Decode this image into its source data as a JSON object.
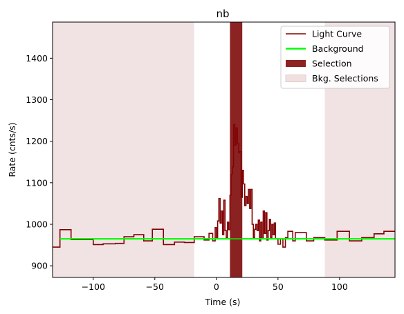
{
  "chart_data": {
    "type": "line",
    "title": "nb",
    "xlabel": "Time (s)",
    "ylabel": "Rate (cnts/s)",
    "xlim": [
      -133,
      145
    ],
    "ylim": [
      872,
      1487
    ],
    "xticks": [
      -100,
      -50,
      0,
      50,
      100
    ],
    "yticks": [
      900,
      1000,
      1100,
      1200,
      1300,
      1400
    ],
    "legend_position": "top-right",
    "colors": {
      "light_curve": "#800000",
      "background": "#00ff00",
      "selection": "#8b2323",
      "bkg_selection": "#f0e0e0"
    },
    "series": [
      {
        "name": "Light Curve",
        "style": "step",
        "points": [
          [
            -133,
            945
          ],
          [
            -127,
            987
          ],
          [
            -118,
            963
          ],
          [
            -100,
            951
          ],
          [
            -92,
            953
          ],
          [
            -82,
            954
          ],
          [
            -75,
            970
          ],
          [
            -67,
            975
          ],
          [
            -59,
            960
          ],
          [
            -52,
            988
          ],
          [
            -43,
            951
          ],
          [
            -34,
            957
          ],
          [
            -26,
            956
          ],
          [
            -18,
            970
          ],
          [
            -10,
            962
          ],
          [
            -6,
            978
          ],
          [
            -3,
            960
          ],
          [
            -1,
            992
          ],
          [
            0,
            965
          ],
          [
            1,
            1008
          ],
          [
            2,
            1062
          ],
          [
            3,
            1003
          ],
          [
            4,
            1032
          ],
          [
            5,
            975
          ],
          [
            6,
            1058
          ],
          [
            7,
            985
          ],
          [
            8,
            968
          ],
          [
            9,
            1005
          ],
          [
            10,
            987
          ],
          [
            11,
            1070
          ],
          [
            12,
            1120
          ],
          [
            13,
            1138
          ],
          [
            14,
            1240
          ],
          [
            15,
            1190
          ],
          [
            16,
            1232
          ],
          [
            17,
            1195
          ],
          [
            18,
            1172
          ],
          [
            19,
            1175
          ],
          [
            20,
            1065
          ],
          [
            21,
            1130
          ],
          [
            22,
            1097
          ],
          [
            23,
            1045
          ],
          [
            24,
            1067
          ],
          [
            25,
            1050
          ],
          [
            26,
            1084
          ],
          [
            27,
            1038
          ],
          [
            28,
            1084
          ],
          [
            29,
            1000
          ],
          [
            30,
            968
          ],
          [
            31,
            988
          ],
          [
            32,
            1000
          ],
          [
            33,
            985
          ],
          [
            34,
            1010
          ],
          [
            35,
            960
          ],
          [
            36,
            1005
          ],
          [
            37,
            965
          ],
          [
            38,
            1032
          ],
          [
            39,
            978
          ],
          [
            40,
            1028
          ],
          [
            41,
            962
          ],
          [
            42,
            985
          ],
          [
            43,
            1012
          ],
          [
            44,
            968
          ],
          [
            45,
            1000
          ],
          [
            46,
            975
          ],
          [
            47,
            1003
          ],
          [
            48,
            965
          ],
          [
            50,
            952
          ],
          [
            52,
            965
          ],
          [
            54,
            945
          ],
          [
            56,
            968
          ],
          [
            58,
            983
          ],
          [
            62,
            960
          ],
          [
            64,
            980
          ],
          [
            73,
            960
          ],
          [
            79,
            968
          ],
          [
            88,
            962
          ],
          [
            98,
            983
          ],
          [
            108,
            960
          ],
          [
            118,
            968
          ],
          [
            128,
            977
          ],
          [
            136,
            983
          ],
          [
            145,
            983
          ]
        ]
      },
      {
        "name": "Background",
        "style": "line",
        "points": [
          [
            -127,
            965
          ],
          [
            145,
            965
          ]
        ]
      }
    ],
    "regions": [
      {
        "name": "Selection",
        "x": [
          11,
          21
        ]
      },
      {
        "name": "Bkg. Selections",
        "x": [
          -133,
          -18
        ]
      },
      {
        "name": "Bkg. Selections",
        "x": [
          88,
          145
        ]
      }
    ]
  }
}
